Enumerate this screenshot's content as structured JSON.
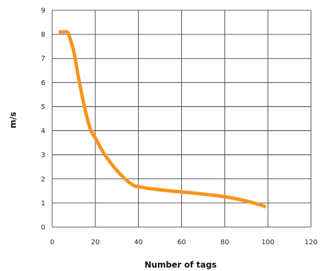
{
  "chart_data": {
    "type": "line",
    "title": "",
    "xlabel": "Number of tags",
    "ylabel": "m/s",
    "xlim": [
      0,
      120
    ],
    "ylim": [
      0,
      9
    ],
    "xticks": [
      0,
      20,
      40,
      60,
      80,
      100,
      120
    ],
    "yticks": [
      0,
      1,
      2,
      3,
      4,
      5,
      6,
      7,
      8,
      9
    ],
    "xtick_labels": [
      "0",
      "20",
      "40",
      "60",
      "80",
      "100",
      "120"
    ],
    "ytick_labels": [
      "0",
      "1",
      "2",
      "3",
      "4",
      "5",
      "6",
      "7",
      "8",
      "9"
    ],
    "grid": true,
    "legend": "none",
    "series": [
      {
        "color": "#f7941d",
        "x": [
          3,
          5,
          7,
          8,
          10,
          12,
          14,
          16,
          18,
          20,
          23,
          26,
          30,
          35,
          38,
          40,
          45,
          50,
          55,
          60,
          65,
          70,
          75,
          80,
          85,
          90,
          95,
          99
        ],
        "y": [
          8.1,
          8.1,
          8.1,
          7.9,
          7.3,
          6.3,
          5.4,
          4.6,
          4.0,
          3.7,
          3.2,
          2.8,
          2.35,
          1.9,
          1.72,
          1.68,
          1.6,
          1.55,
          1.5,
          1.46,
          1.42,
          1.37,
          1.32,
          1.26,
          1.18,
          1.08,
          0.96,
          0.84
        ]
      }
    ]
  }
}
